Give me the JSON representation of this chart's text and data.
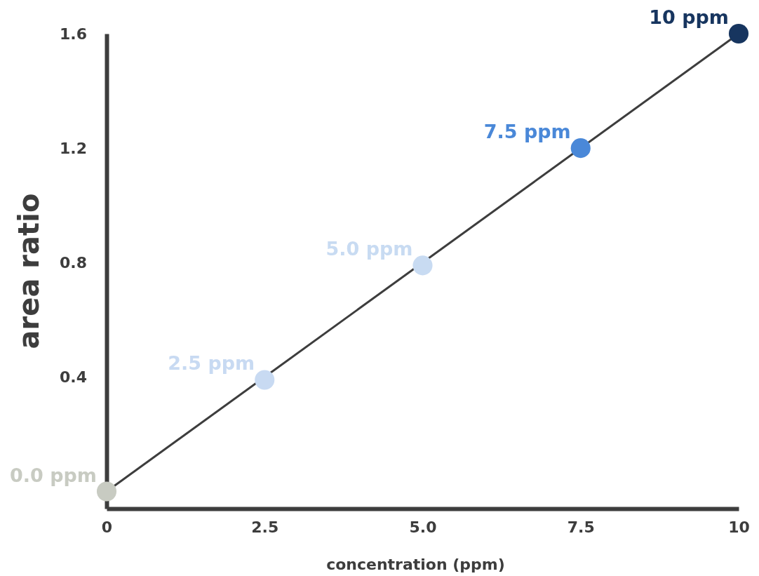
{
  "chart_data": {
    "type": "scatter",
    "xlabel": "concentration (ppm)",
    "ylabel": "area ratio",
    "xlim": [
      0,
      10
    ],
    "ylim": [
      -0.06,
      1.6
    ],
    "xticks": [
      0,
      2.5,
      {
        "value": 5,
        "label": "5.0"
      },
      {
        "value": 7.5,
        "label": "7.5"
      },
      10
    ],
    "yticks": [
      0.4,
      0.8,
      1.2,
      1.6
    ],
    "grid": false,
    "annotations": [
      {
        "text": "0.0 ppm",
        "x": 0,
        "y": 0
      },
      {
        "text": "2.5 ppm",
        "x": 2.5,
        "y": 0.39
      },
      {
        "text": "5.0 ppm",
        "x": 5,
        "y": 0.79
      },
      {
        "text": "7.5 ppm",
        "x": 7.5,
        "y": 1.2
      },
      {
        "text": "10 ppm",
        "x": 10,
        "y": 1.6
      }
    ],
    "series": [
      {
        "type": "line",
        "x": [
          0,
          10
        ],
        "values": [
          0,
          1.6
        ],
        "color": "#3d3d3d",
        "line_style": "solid"
      },
      {
        "type": "scatter",
        "x": [
          0,
          2.5,
          5,
          7.5,
          10
        ],
        "values": [
          0,
          0.39,
          0.79,
          1.2,
          1.6
        ],
        "colors": [
          "#c8cbc2",
          "#c8daf2",
          "#c8dbf2",
          "#4a88d8",
          "#17355f"
        ],
        "marker": "circle"
      }
    ]
  }
}
